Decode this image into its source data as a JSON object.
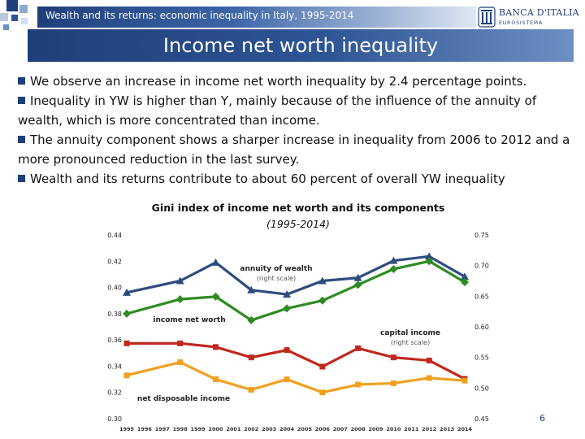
{
  "header": {
    "section_title": "Wealth and its returns: economic inequality in Italy, 1995-2014",
    "logo_name": "BANCA D'ITALIA",
    "logo_sub": "EUROSISTEMA",
    "logo_icon": "bank-emblem-icon"
  },
  "slide": {
    "title": "Income net worth inequality",
    "page_number": "6"
  },
  "bullets": [
    {
      "text": "We observe an increase in income net worth inequality by 2.4 percentage points."
    },
    {
      "text": "Inequality in YW is higher than Y, mainly because of the influence of the annuity of wealth, which is more concentrated than income."
    },
    {
      "text": "The annuity component shows a sharper increase in inequality from 2006 to 2012 and a more pronounced reduction in the last survey."
    },
    {
      "text": "Wealth and its returns contribute to about 60 percent of overall YW inequality"
    }
  ],
  "colors": {
    "brand_blue": "#1f3f7a",
    "series_annuity": "#2e4d7e",
    "series_net_worth": "#2e8b22",
    "series_capital": "#c0281e",
    "series_disposable": "#f0a020"
  },
  "chart_data": {
    "type": "line",
    "title": "Gini index of income net worth and its components",
    "subtitle": "(1995-2014)",
    "x": [
      1995,
      1998,
      2000,
      2002,
      2004,
      2006,
      2008,
      2010,
      2012,
      2014
    ],
    "x_tick_labels": [
      "1995",
      "1996",
      "1997",
      "1998",
      "1999",
      "2000",
      "2001",
      "2002",
      "2003",
      "2004",
      "2005",
      "2006",
      "2007",
      "2008",
      "2009",
      "2010",
      "2011",
      "2012",
      "2013",
      "2014"
    ],
    "y_left": {
      "ticks": [
        "0.30",
        "0.32",
        "0.34",
        "0.36",
        "0.38",
        "0.40",
        "0.42",
        "0.44"
      ],
      "lim": [
        0.3,
        0.44
      ]
    },
    "y_right": {
      "ticks": [
        "0.45",
        "0.50",
        "0.55",
        "0.60",
        "0.65",
        "0.70",
        "0.75"
      ],
      "lim": [
        0.45,
        0.75
      ]
    },
    "grid": false,
    "series": [
      {
        "name": "annuity of wealth",
        "note": "(right scale)",
        "axis": "right",
        "marker": "triangle",
        "color": "#2e4d7e",
        "values": [
          0.656,
          0.675,
          0.705,
          0.66,
          0.653,
          0.675,
          0.68,
          0.708,
          0.715,
          0.682
        ]
      },
      {
        "name": "income net worth",
        "axis": "left",
        "marker": "diamond",
        "color": "#2e8b22",
        "values": [
          0.38,
          0.391,
          0.393,
          0.375,
          0.384,
          0.39,
          0.402,
          0.414,
          0.42,
          0.404
        ]
      },
      {
        "name": "capital income",
        "note": "(right scale)",
        "axis": "right",
        "marker": "square",
        "color": "#c0281e",
        "values": [
          0.573,
          0.573,
          0.567,
          0.55,
          0.562,
          0.535,
          0.565,
          0.55,
          0.545,
          0.515
        ]
      },
      {
        "name": "net disposable income",
        "axis": "left",
        "marker": "square",
        "color": "#f0a020",
        "values": [
          0.333,
          0.343,
          0.33,
          0.322,
          0.33,
          0.32,
          0.326,
          0.327,
          0.331,
          0.329
        ]
      }
    ]
  }
}
